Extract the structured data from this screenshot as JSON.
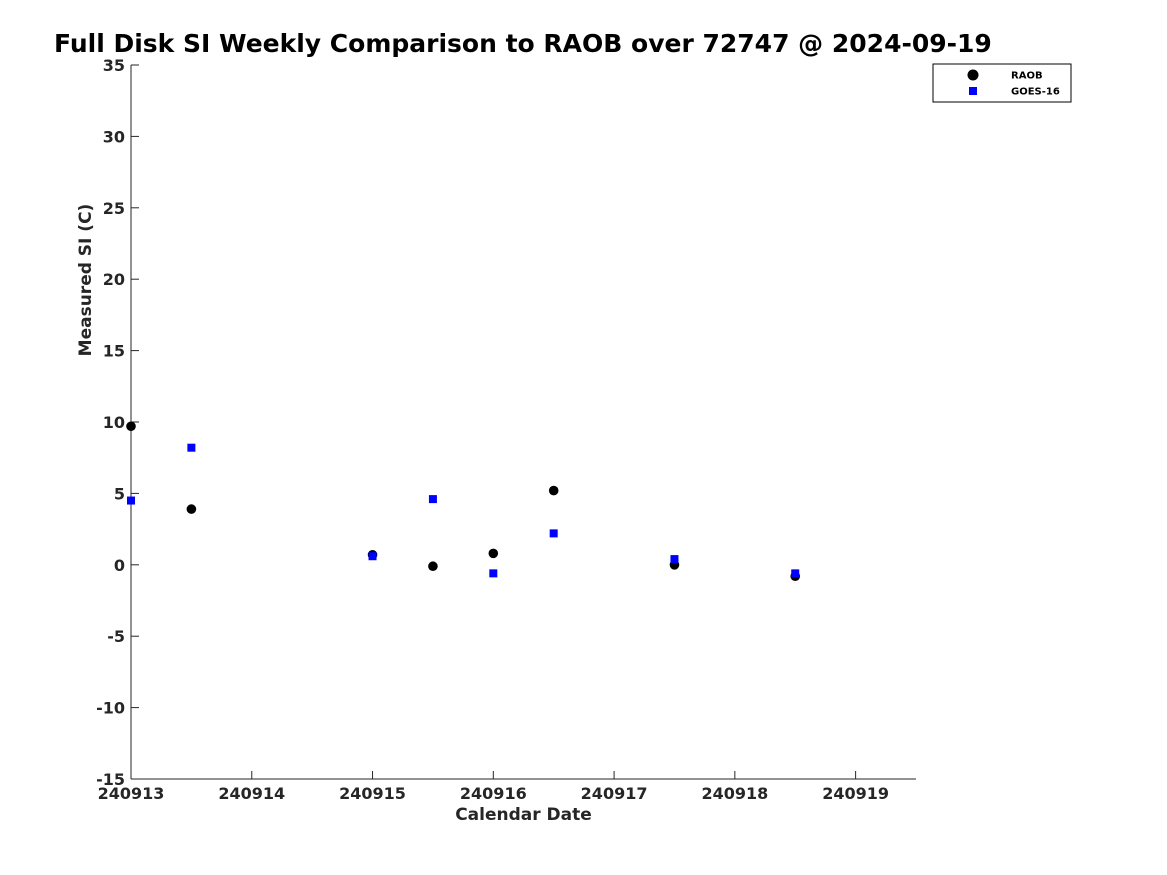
{
  "chart_data": {
    "type": "scatter",
    "title": "Full Disk SI Weekly Comparison to RAOB over 72747 @ 2024-09-19",
    "xlabel": "Calendar Date",
    "ylabel": "Measured SI (C)",
    "xlim": [
      240913,
      240919.5
    ],
    "ylim": [
      -15,
      35
    ],
    "x_ticks": [
      240913,
      240914,
      240915,
      240916,
      240917,
      240918,
      240919
    ],
    "x_tick_labels": [
      "240913",
      "240914",
      "240915",
      "240916",
      "240917",
      "240918",
      "240919"
    ],
    "y_ticks": [
      -15,
      -10,
      -5,
      0,
      5,
      10,
      15,
      20,
      25,
      30,
      35
    ],
    "y_tick_labels": [
      "-15",
      "-10",
      "-5",
      "0",
      "5",
      "10",
      "15",
      "20",
      "25",
      "30",
      "35"
    ],
    "grid": false,
    "legend_position": "top-right",
    "series": [
      {
        "name": "RAOB",
        "marker": "circle",
        "color": "#000000",
        "x": [
          240913.0,
          240913.5,
          240915.0,
          240915.5,
          240916.0,
          240916.5,
          240917.5,
          240918.5
        ],
        "y": [
          9.7,
          3.9,
          0.7,
          -0.1,
          0.8,
          5.2,
          0.0,
          -0.8
        ]
      },
      {
        "name": "GOES-16",
        "marker": "square",
        "color": "#0000ff",
        "x": [
          240913.0,
          240913.5,
          240915.0,
          240915.5,
          240916.0,
          240916.5,
          240917.5,
          240918.5
        ],
        "y": [
          4.5,
          8.2,
          0.6,
          4.6,
          -0.6,
          2.2,
          0.4,
          -0.6
        ]
      }
    ]
  }
}
